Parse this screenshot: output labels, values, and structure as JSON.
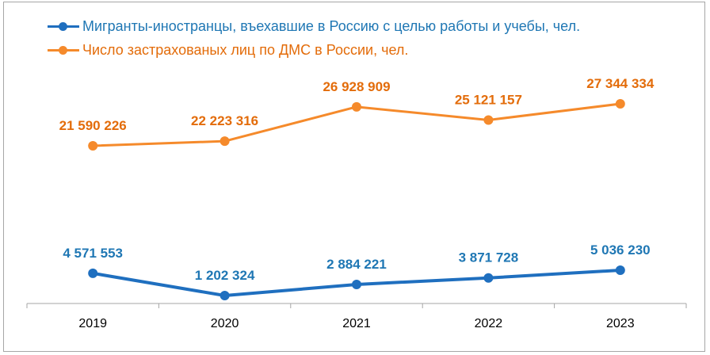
{
  "chart_data": {
    "type": "line",
    "categories": [
      "2019",
      "2020",
      "2021",
      "2022",
      "2023"
    ],
    "series": [
      {
        "name": "Мигранты-иностранцы, въехавшие в Россию с целью работы и учебы, чел.",
        "color": "#1f6fbf",
        "label_color": "#1f77b4",
        "values": [
          4571553,
          1202324,
          2884221,
          3871728,
          5036230
        ],
        "labels": [
          "4 571 553",
          "1 202 324",
          "2 884 221",
          "3 871 728",
          "5 036 230"
        ]
      },
      {
        "name": "Число застрахованых лиц по ДМС в России, чел.",
        "color": "#f58a2b",
        "label_color": "#e36c0a",
        "values": [
          21590226,
          22223316,
          26928909,
          25121157,
          27344334
        ],
        "labels": [
          "21 590 226",
          "22 223 316",
          "26 928 909",
          "25 121 157",
          "27 344 334"
        ]
      }
    ],
    "legend_position": "top-left",
    "grid": false
  }
}
